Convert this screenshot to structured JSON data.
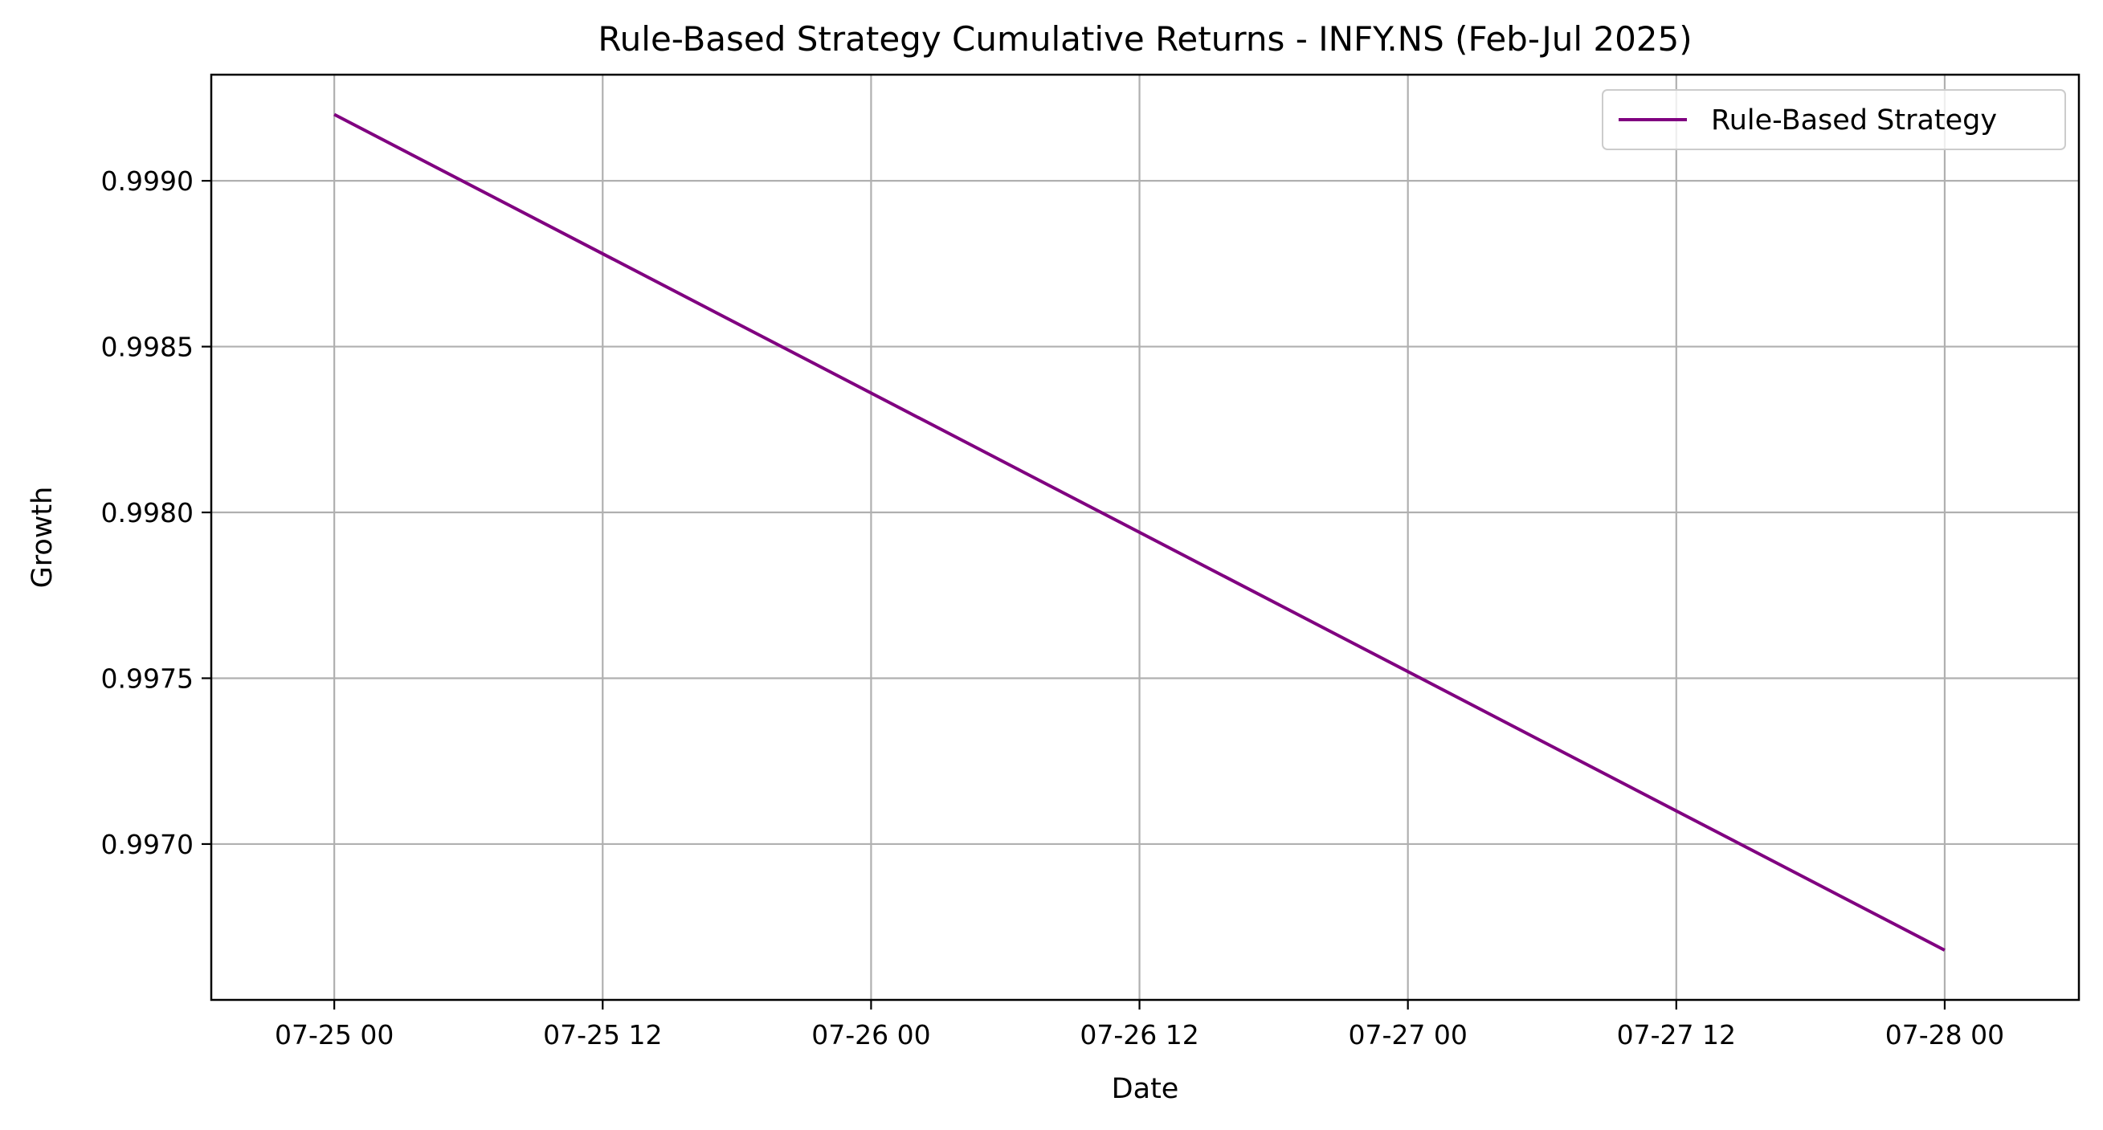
{
  "chart_data": {
    "type": "line",
    "title": "Rule-Based Strategy Cumulative Returns - INFY.NS (Feb-Jul 2025)",
    "xlabel": "Date",
    "ylabel": "Growth",
    "x_tick_labels": [
      "07-25 00",
      "07-25 12",
      "07-26 00",
      "07-26 12",
      "07-27 00",
      "07-27 12",
      "07-28 00"
    ],
    "y_tick_labels": [
      "0.9970",
      "0.9975",
      "0.9980",
      "0.9985",
      "0.9990"
    ],
    "y_ticks": [
      0.997,
      0.9975,
      0.998,
      0.9985,
      0.999
    ],
    "ylim": [
      0.99653,
      0.99932
    ],
    "xlim": [
      "07-24 18:30",
      "07-28 06:00"
    ],
    "grid": true,
    "legend_position": "top-right",
    "series": [
      {
        "name": "Rule-Based Strategy",
        "color": "#800080",
        "x": [
          "07-25 00",
          "07-28 00"
        ],
        "y": [
          0.9992,
          0.99668
        ]
      }
    ]
  }
}
